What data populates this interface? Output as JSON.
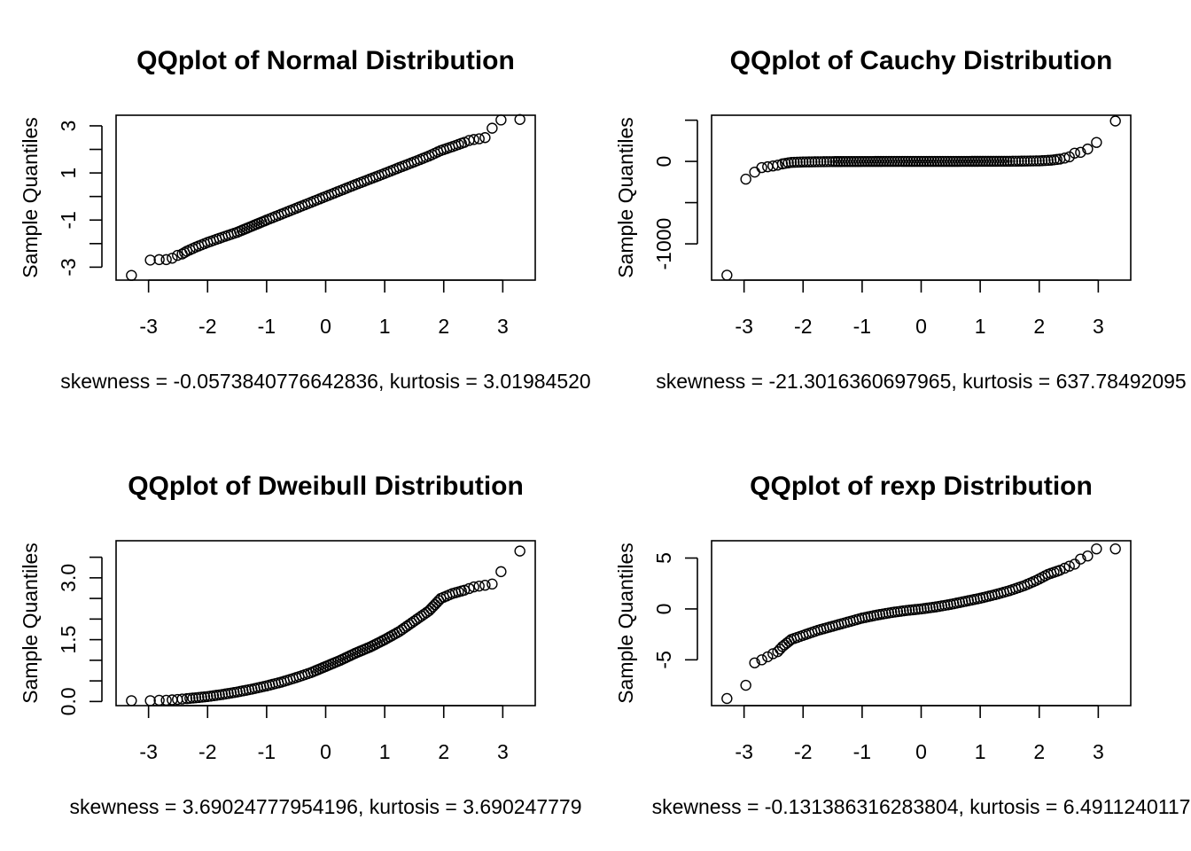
{
  "chart_data": [
    {
      "type": "scatter",
      "title": "QQplot of Normal Distribution",
      "ylabel": "Sample Quantiles",
      "xlabel": "skewness = -0.0573840776642836, kurtosis = 3.01984520",
      "xlim": [
        -3.55,
        3.55
      ],
      "ylim": [
        -3.55,
        3.45
      ],
      "xticks": [
        -3,
        -2,
        -1,
        0,
        1,
        2,
        3
      ],
      "yticks": [
        -3,
        -2,
        -1,
        0,
        1,
        2,
        3
      ],
      "yticklabels": [
        "-3",
        "",
        "-1",
        "",
        "1",
        "",
        "3"
      ],
      "points": [
        [
          -3.29,
          -3.35
        ],
        [
          -2.97,
          -2.7
        ],
        [
          -2.82,
          -2.68
        ],
        [
          -2.7,
          -2.68
        ],
        [
          -2.6,
          -2.62
        ],
        [
          -2.51,
          -2.5
        ],
        [
          -2.43,
          -2.44
        ],
        [
          -2.35,
          -2.32
        ],
        [
          -2.2,
          -2.15
        ],
        [
          -2.0,
          -1.95
        ],
        [
          -1.75,
          -1.73
        ],
        [
          -1.5,
          -1.52
        ],
        [
          -1.25,
          -1.26
        ],
        [
          -1.0,
          -1.0
        ],
        [
          -0.75,
          -0.75
        ],
        [
          -0.5,
          -0.5
        ],
        [
          -0.25,
          -0.25
        ],
        [
          0.0,
          0.0
        ],
        [
          0.25,
          0.25
        ],
        [
          0.5,
          0.5
        ],
        [
          0.75,
          0.74
        ],
        [
          1.0,
          0.98
        ],
        [
          1.25,
          1.23
        ],
        [
          1.5,
          1.47
        ],
        [
          1.75,
          1.72
        ],
        [
          1.95,
          1.95
        ],
        [
          2.15,
          2.12
        ],
        [
          2.35,
          2.3
        ],
        [
          2.43,
          2.38
        ],
        [
          2.51,
          2.42
        ],
        [
          2.6,
          2.45
        ],
        [
          2.7,
          2.5
        ],
        [
          2.82,
          2.9
        ],
        [
          2.97,
          3.25
        ],
        [
          3.29,
          3.27
        ]
      ]
    },
    {
      "type": "scatter",
      "title": "QQplot of Cauchy Distribution",
      "ylabel": "Sample Quantiles",
      "xlabel": "skewness = -21.3016360697965, kurtosis = 637.78492095",
      "xlim": [
        -3.55,
        3.55
      ],
      "ylim": [
        -1440,
        560
      ],
      "xticks": [
        -3,
        -2,
        -1,
        0,
        1,
        2,
        3
      ],
      "yticks": [
        -1000,
        -500,
        0,
        500
      ],
      "yticklabels": [
        "-1000",
        "",
        "0",
        ""
      ],
      "points": [
        [
          -3.29,
          -1380
        ],
        [
          -2.97,
          -215
        ],
        [
          -2.82,
          -130
        ],
        [
          -2.7,
          -75
        ],
        [
          -2.6,
          -65
        ],
        [
          -2.51,
          -55
        ],
        [
          -2.43,
          -45
        ],
        [
          -2.35,
          -30
        ],
        [
          -2.2,
          -12
        ],
        [
          -2.0,
          -7
        ],
        [
          -1.75,
          -4
        ],
        [
          -1.5,
          -2
        ],
        [
          -1.0,
          -1
        ],
        [
          -0.5,
          0
        ],
        [
          0.0,
          0
        ],
        [
          0.5,
          0
        ],
        [
          1.0,
          1
        ],
        [
          1.5,
          2
        ],
        [
          1.75,
          4
        ],
        [
          2.0,
          7
        ],
        [
          2.2,
          15
        ],
        [
          2.35,
          28
        ],
        [
          2.43,
          40
        ],
        [
          2.51,
          55
        ],
        [
          2.6,
          100
        ],
        [
          2.7,
          110
        ],
        [
          2.82,
          150
        ],
        [
          2.97,
          230
        ],
        [
          3.29,
          490
        ]
      ]
    },
    {
      "type": "scatter",
      "title": "QQplot of Dweibull Distribution",
      "ylabel": "Sample Quantiles",
      "xlabel": "skewness = 3.69024777954196, kurtosis = 3.690247779",
      "xlim": [
        -3.55,
        3.55
      ],
      "ylim": [
        -0.1,
        3.9
      ],
      "xticks": [
        -3,
        -2,
        -1,
        0,
        1,
        2,
        3
      ],
      "yticks": [
        0.0,
        0.5,
        1.0,
        1.5,
        2.0,
        2.5,
        3.0,
        3.5
      ],
      "yticklabels": [
        "0.0",
        "",
        "",
        "1.5",
        "",
        "",
        "3.0",
        ""
      ],
      "points": [
        [
          -3.29,
          0.02
        ],
        [
          -2.97,
          0.02
        ],
        [
          -2.82,
          0.03
        ],
        [
          -2.7,
          0.03
        ],
        [
          -2.6,
          0.04
        ],
        [
          -2.51,
          0.05
        ],
        [
          -2.43,
          0.06
        ],
        [
          -2.35,
          0.07
        ],
        [
          -2.2,
          0.09
        ],
        [
          -2.0,
          0.12
        ],
        [
          -1.75,
          0.17
        ],
        [
          -1.5,
          0.23
        ],
        [
          -1.25,
          0.3
        ],
        [
          -1.0,
          0.38
        ],
        [
          -0.75,
          0.47
        ],
        [
          -0.5,
          0.58
        ],
        [
          -0.25,
          0.7
        ],
        [
          0.0,
          0.85
        ],
        [
          0.25,
          1.0
        ],
        [
          0.5,
          1.17
        ],
        [
          0.75,
          1.32
        ],
        [
          1.0,
          1.5
        ],
        [
          1.25,
          1.7
        ],
        [
          1.5,
          1.95
        ],
        [
          1.75,
          2.2
        ],
        [
          1.95,
          2.5
        ],
        [
          2.15,
          2.62
        ],
        [
          2.35,
          2.7
        ],
        [
          2.43,
          2.74
        ],
        [
          2.51,
          2.78
        ],
        [
          2.6,
          2.8
        ],
        [
          2.7,
          2.82
        ],
        [
          2.82,
          2.85
        ],
        [
          2.97,
          3.15
        ],
        [
          3.29,
          3.65
        ]
      ]
    },
    {
      "type": "scatter",
      "title": "QQplot of rexp Distribution",
      "ylabel": "Sample Quantiles",
      "xlabel": "skewness = -0.131386316283804, kurtosis = 6.4911240117",
      "xlim": [
        -3.55,
        3.55
      ],
      "ylim": [
        -9.5,
        6.7
      ],
      "xticks": [
        -3,
        -2,
        -1,
        0,
        1,
        2,
        3
      ],
      "yticks": [
        -5,
        0,
        5
      ],
      "yticklabels": [
        "-5",
        "0",
        "5"
      ],
      "points": [
        [
          -3.29,
          -8.8
        ],
        [
          -2.97,
          -7.5
        ],
        [
          -2.82,
          -5.3
        ],
        [
          -2.7,
          -5.0
        ],
        [
          -2.6,
          -4.7
        ],
        [
          -2.51,
          -4.4
        ],
        [
          -2.43,
          -4.2
        ],
        [
          -2.35,
          -3.7
        ],
        [
          -2.2,
          -3.0
        ],
        [
          -2.0,
          -2.6
        ],
        [
          -1.75,
          -2.1
        ],
        [
          -1.5,
          -1.7
        ],
        [
          -1.25,
          -1.3
        ],
        [
          -1.0,
          -0.9
        ],
        [
          -0.75,
          -0.6
        ],
        [
          -0.5,
          -0.35
        ],
        [
          -0.25,
          -0.15
        ],
        [
          0.0,
          0.0
        ],
        [
          0.25,
          0.2
        ],
        [
          0.5,
          0.45
        ],
        [
          0.75,
          0.75
        ],
        [
          1.0,
          1.05
        ],
        [
          1.25,
          1.4
        ],
        [
          1.5,
          1.8
        ],
        [
          1.75,
          2.3
        ],
        [
          1.95,
          2.8
        ],
        [
          2.15,
          3.4
        ],
        [
          2.35,
          3.8
        ],
        [
          2.43,
          4.0
        ],
        [
          2.51,
          4.2
        ],
        [
          2.6,
          4.4
        ],
        [
          2.7,
          4.9
        ],
        [
          2.82,
          5.2
        ],
        [
          2.97,
          5.9
        ],
        [
          3.29,
          5.9
        ]
      ]
    }
  ]
}
